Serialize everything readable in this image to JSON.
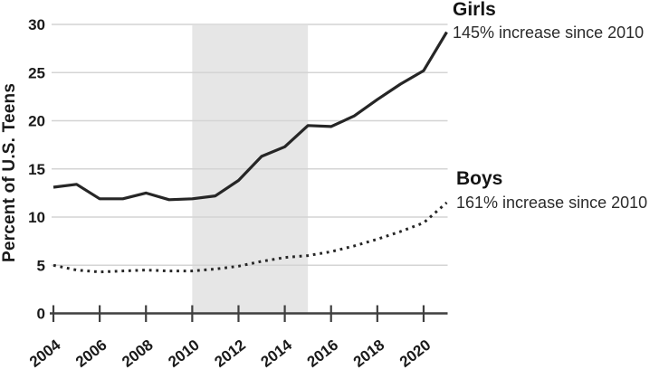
{
  "figure": {
    "background": "#ffffff",
    "text_color": "#1a1a1a"
  },
  "chart_data": {
    "type": "line",
    "title": "",
    "xlabel": "",
    "ylabel": "Percent of U.S. Teens",
    "ylim": [
      0,
      30
    ],
    "grid": true,
    "grid_color": "#d4d4d4",
    "axis_color": "#3f3f3f",
    "y_ticks": [
      0,
      5,
      10,
      15,
      20,
      25,
      30
    ],
    "x_tick_labels": [
      "2004",
      "2006",
      "2008",
      "2010",
      "2012",
      "2014",
      "2016",
      "2018",
      "2020"
    ],
    "x": [
      2004,
      2005,
      2006,
      2007,
      2008,
      2009,
      2010,
      2011,
      2012,
      2013,
      2014,
      2015,
      2016,
      2017,
      2018,
      2019,
      2020,
      2021
    ],
    "series": [
      {
        "name": "Girls",
        "line_style": "solid",
        "color": "#262626",
        "values": [
          13.1,
          13.4,
          11.9,
          11.9,
          12.5,
          11.8,
          11.9,
          12.2,
          13.8,
          16.3,
          17.3,
          19.5,
          19.4,
          20.5,
          22.2,
          23.8,
          25.2,
          29.2
        ]
      },
      {
        "name": "Boys",
        "line_style": "dotted",
        "color": "#262626",
        "values": [
          5.0,
          4.5,
          4.3,
          4.4,
          4.5,
          4.4,
          4.4,
          4.6,
          4.9,
          5.4,
          5.8,
          6.0,
          6.4,
          7.0,
          7.7,
          8.5,
          9.4,
          11.5
        ]
      }
    ],
    "shaded_region": {
      "from_x": 2010,
      "to_x": 2015,
      "color": "#e6e6e6"
    },
    "legend_position": "right-annotations"
  },
  "annotations": {
    "girls": {
      "title": "Girls",
      "subtitle": "145% increase since 2010"
    },
    "boys": {
      "title": "Boys",
      "subtitle": "161% increase since 2010"
    }
  }
}
